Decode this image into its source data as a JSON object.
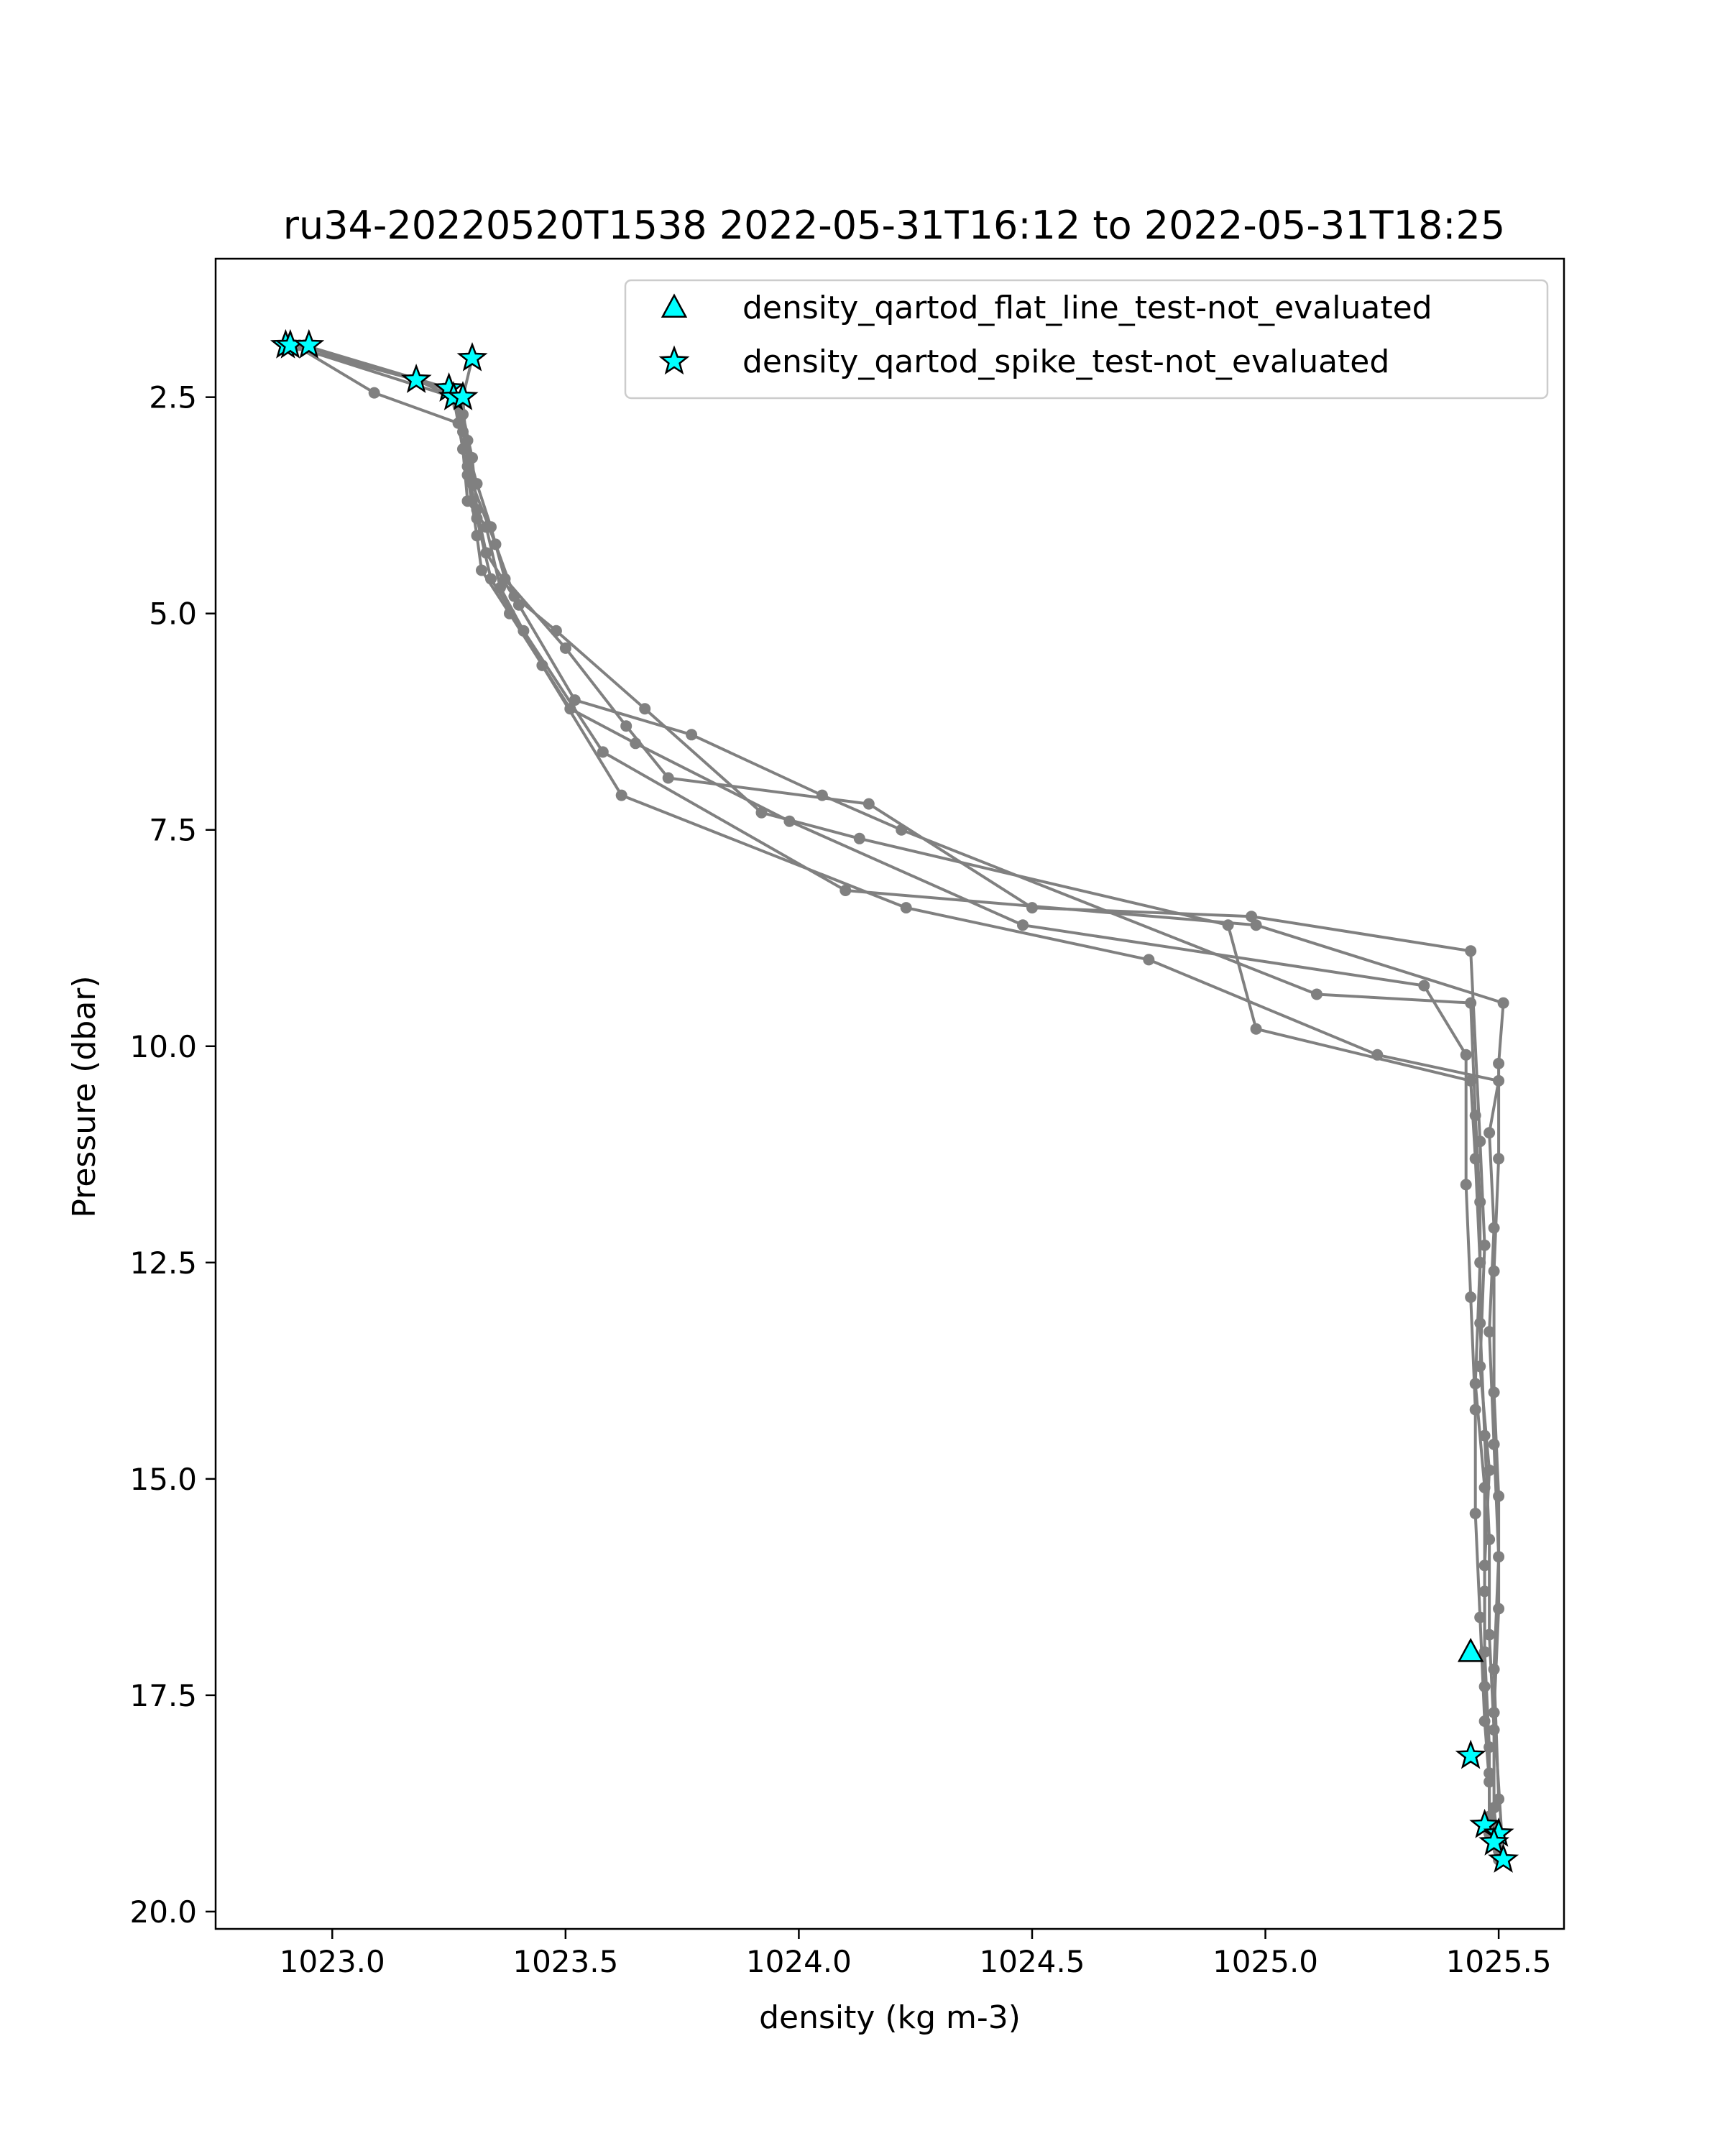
{
  "chart_data": {
    "type": "scatter",
    "title": "ru34-20220520T1538 2022-05-31T16:12 to 2022-05-31T18:25",
    "xlabel": "density (kg m-3)",
    "ylabel": "Pressure (dbar)",
    "xlim": [
      1022.75,
      1025.64
    ],
    "ylim": [
      20.2,
      0.9
    ],
    "y_inverted": true,
    "grid": false,
    "legend_position": "top-right",
    "xticks": [
      1023.0,
      1023.5,
      1024.0,
      1024.5,
      1025.0,
      1025.5
    ],
    "xtick_labels": [
      "1023.0",
      "1023.5",
      "1024.0",
      "1024.5",
      "1025.0",
      "1025.5"
    ],
    "yticks": [
      2.5,
      5.0,
      7.5,
      10.0,
      12.5,
      15.0,
      17.5,
      20.0
    ],
    "ytick_labels": [
      "2.5",
      "5.0",
      "7.5",
      "10.0",
      "12.5",
      "15.0",
      "17.5",
      "20.0"
    ],
    "colors": {
      "profile": "#808080",
      "flag_fill": "#00ffff",
      "flag_edge": "#000000"
    },
    "profiles": [
      {
        "x": [
          1022.9,
          1023.18,
          1023.26,
          1023.28,
          1023.31,
          1023.34,
          1023.37,
          1023.5,
          1023.63,
          1023.72,
          1024.15,
          1024.5,
          1024.97,
          1025.44,
          1025.46,
          1025.47,
          1025.46,
          1025.48,
          1025.47,
          1025.47,
          1025.48,
          1025.48,
          1025.48
        ],
        "y": [
          1.9,
          2.3,
          2.5,
          2.9,
          3.5,
          4.0,
          4.6,
          5.4,
          6.3,
          6.9,
          7.2,
          8.4,
          8.5,
          8.9,
          11.1,
          12.3,
          13.7,
          14.9,
          16.0,
          17.0,
          18.1,
          18.9,
          19.1
        ]
      },
      {
        "x": [
          1022.93,
          1023.24,
          1023.27,
          1023.29,
          1023.3,
          1023.35,
          1023.39,
          1023.48,
          1023.67,
          1023.92,
          1024.13,
          1024.92,
          1024.98,
          1025.44,
          1025.45,
          1025.46,
          1025.45,
          1025.47,
          1025.47,
          1025.47,
          1025.48,
          1025.48,
          1025.49
        ],
        "y": [
          1.9,
          2.4,
          2.6,
          3.0,
          3.5,
          4.2,
          4.8,
          5.2,
          6.1,
          7.3,
          7.6,
          8.6,
          9.8,
          10.4,
          11.3,
          12.5,
          13.9,
          15.1,
          16.3,
          17.4,
          18.4,
          19.0,
          19.2
        ]
      },
      {
        "x": [
          1022.94,
          1023.25,
          1023.28,
          1023.3,
          1023.31,
          1023.33,
          1023.4,
          1023.52,
          1023.77,
          1024.05,
          1024.22,
          1025.11,
          1025.44,
          1025.45,
          1025.46,
          1025.46,
          1025.47,
          1025.48,
          1025.48,
          1025.49,
          1025.49,
          1025.5
        ],
        "y": [
          1.9,
          2.4,
          2.7,
          3.2,
          3.8,
          4.3,
          4.9,
          6.0,
          6.4,
          7.1,
          7.5,
          9.4,
          9.5,
          10.8,
          11.8,
          13.2,
          14.5,
          15.7,
          16.8,
          17.9,
          18.8,
          19.3
        ]
      },
      {
        "x": [
          1022.92,
          1023.09,
          1023.27,
          1023.29,
          1023.31,
          1023.32,
          1023.38,
          1023.51,
          1023.65,
          1023.98,
          1024.48,
          1025.34,
          1025.43,
          1025.43,
          1025.44,
          1025.45,
          1025.45,
          1025.46,
          1025.47,
          1025.48,
          1025.48,
          1025.5
        ],
        "y": [
          1.9,
          2.45,
          2.8,
          3.4,
          4.1,
          4.5,
          5.0,
          6.1,
          6.5,
          7.4,
          8.6,
          9.3,
          10.1,
          11.6,
          12.9,
          14.2,
          15.4,
          16.6,
          17.8,
          18.5,
          19.1,
          19.4
        ]
      },
      {
        "x": [
          1023.3,
          1023.28,
          1023.29,
          1023.31,
          1023.34,
          1023.41,
          1023.58,
          1024.1,
          1024.98,
          1025.51,
          1025.5,
          1025.5,
          1025.49,
          1025.49,
          1025.5,
          1025.5,
          1025.49,
          1025.51
        ],
        "y": [
          2.05,
          2.5,
          3.3,
          3.9,
          4.6,
          5.2,
          6.6,
          8.2,
          8.6,
          9.5,
          10.2,
          11.3,
          12.6,
          14.0,
          15.2,
          16.5,
          17.7,
          19.4
        ]
      },
      {
        "x": [
          1022.91,
          1023.26,
          1023.28,
          1023.29,
          1023.33,
          1023.36,
          1023.45,
          1023.62,
          1024.23,
          1024.75,
          1025.24,
          1025.5,
          1025.48,
          1025.49,
          1025.48,
          1025.49,
          1025.5,
          1025.49,
          1025.5
        ],
        "y": [
          1.9,
          2.5,
          3.1,
          3.7,
          4.0,
          4.7,
          5.6,
          7.1,
          8.4,
          9.0,
          10.1,
          10.4,
          11.0,
          12.1,
          13.3,
          14.6,
          15.9,
          17.2,
          18.7
        ]
      }
    ],
    "flags": [
      {
        "name": "density_qartod_flat_line_test-not_evaluated",
        "marker": "triangle",
        "points": [
          {
            "x": 1025.44,
            "y": 17.0
          }
        ]
      },
      {
        "name": "density_qartod_spike_test-not_evaluated",
        "marker": "star",
        "points": [
          {
            "x": 1022.9,
            "y": 1.9
          },
          {
            "x": 1022.91,
            "y": 1.9
          },
          {
            "x": 1022.95,
            "y": 1.9
          },
          {
            "x": 1023.3,
            "y": 2.05
          },
          {
            "x": 1023.18,
            "y": 2.3
          },
          {
            "x": 1023.25,
            "y": 2.4
          },
          {
            "x": 1023.26,
            "y": 2.5
          },
          {
            "x": 1023.28,
            "y": 2.5
          },
          {
            "x": 1025.44,
            "y": 18.2
          },
          {
            "x": 1025.47,
            "y": 19.0
          },
          {
            "x": 1025.5,
            "y": 19.1
          },
          {
            "x": 1025.49,
            "y": 19.2
          },
          {
            "x": 1025.51,
            "y": 19.4
          }
        ]
      }
    ]
  }
}
